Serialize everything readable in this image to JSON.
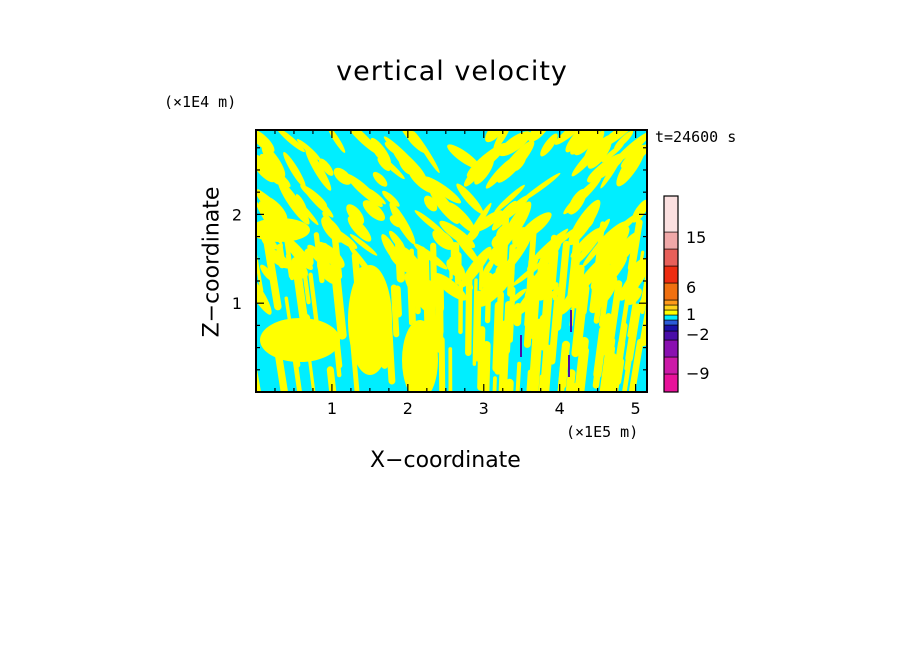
{
  "chart_data": {
    "type": "heatmap",
    "title": "vertical velocity",
    "xlabel": "X−coordinate",
    "ylabel": "Z−coordinate",
    "x_unit_label": "(×1E5 m)",
    "y_unit_label": "(×1E4 m)",
    "timestamp": "t=24600 s",
    "xlim": [
      0,
      5.15
    ],
    "ylim": [
      0,
      2.95
    ],
    "x_ticks": [
      1,
      2,
      3,
      4,
      5
    ],
    "y_ticks": [
      1,
      2
    ],
    "x_tick_labels": [
      "1",
      "2",
      "3",
      "4",
      "5"
    ],
    "y_tick_labels": [
      "1",
      "2"
    ],
    "dominant_fields": [
      {
        "level": "negative (-1 to 0)",
        "color": "#00eeff"
      },
      {
        "level": "positive (0 to 1)",
        "color": "#ffff00"
      }
    ],
    "colorbar": {
      "levels": [
        {
          "value": -12,
          "color": "#e8129a"
        },
        {
          "value": -9,
          "color": "#cc1aa8"
        },
        {
          "value": -6,
          "color": "#8a10b0"
        },
        {
          "value": -4,
          "color": "#4a0ea8"
        },
        {
          "value": -3,
          "color": "#1a10a8"
        },
        {
          "value": -2,
          "color": "#2b5bd9"
        },
        {
          "value": -1,
          "color": "#00eeff"
        },
        {
          "value": 0,
          "color": "#ffff00"
        },
        {
          "value": 1,
          "color": "#ffd21a"
        },
        {
          "value": 2,
          "color": "#ff9a1a"
        },
        {
          "value": 3,
          "color": "#f07010"
        },
        {
          "value": 6,
          "color": "#ee2c10"
        },
        {
          "value": 10,
          "color": "#e8605a"
        },
        {
          "value": 15,
          "color": "#f0a8a8"
        },
        {
          "value": 20,
          "color": "#fbe0e0"
        }
      ],
      "tick_labels": [
        {
          "label": "15",
          "value": 15
        },
        {
          "label": "6",
          "value": 6
        },
        {
          "label": "1",
          "value": 1
        },
        {
          "label": "−2",
          "value": -2
        },
        {
          "label": "−9",
          "value": -9
        }
      ]
    }
  }
}
